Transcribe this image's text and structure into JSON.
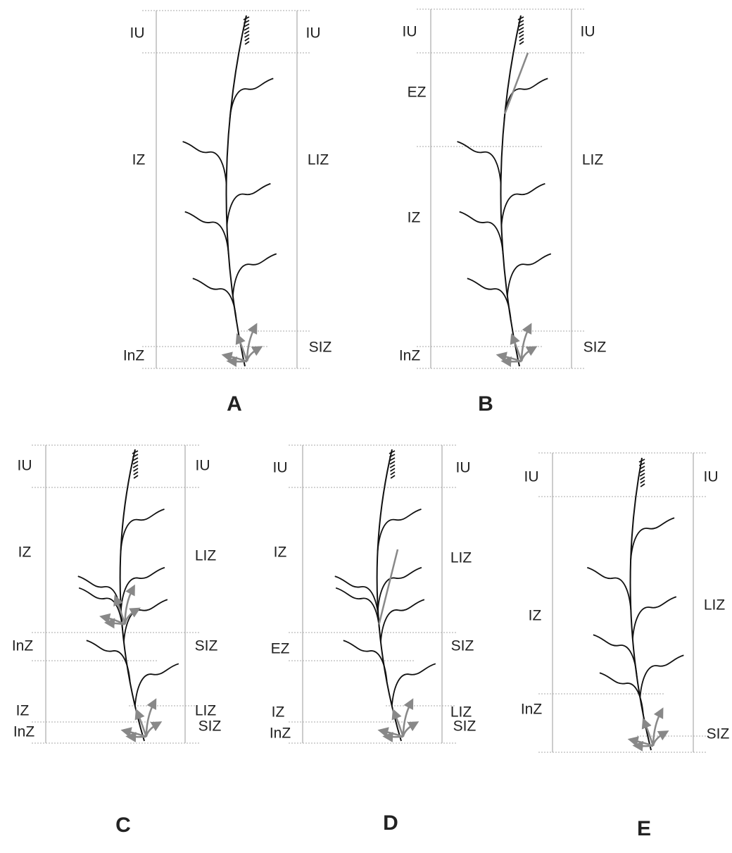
{
  "panels": [
    {
      "letter": "A",
      "left": [
        "IU",
        "IZ",
        "InZ"
      ],
      "right": [
        "IU",
        "LIZ",
        "SIZ"
      ]
    },
    {
      "letter": "B",
      "left": [
        "IU",
        "EZ",
        "IZ",
        "InZ"
      ],
      "right": [
        "IU",
        "LIZ",
        "SIZ"
      ]
    },
    {
      "letter": "C",
      "left": [
        "IU",
        "IZ",
        "InZ",
        "IZ",
        "InZ"
      ],
      "right": [
        "IU",
        "LIZ",
        "SIZ",
        "LIZ",
        "SIZ"
      ]
    },
    {
      "letter": "D",
      "left": [
        "IU",
        "IZ",
        "EZ",
        "IZ",
        "InZ"
      ],
      "right": [
        "IU",
        "LIZ",
        "SIZ",
        "LIZ",
        "SIZ"
      ]
    },
    {
      "letter": "E",
      "left": [
        "IU",
        "IZ",
        "InZ"
      ],
      "right": [
        "IU",
        "LIZ",
        "SIZ"
      ]
    }
  ]
}
